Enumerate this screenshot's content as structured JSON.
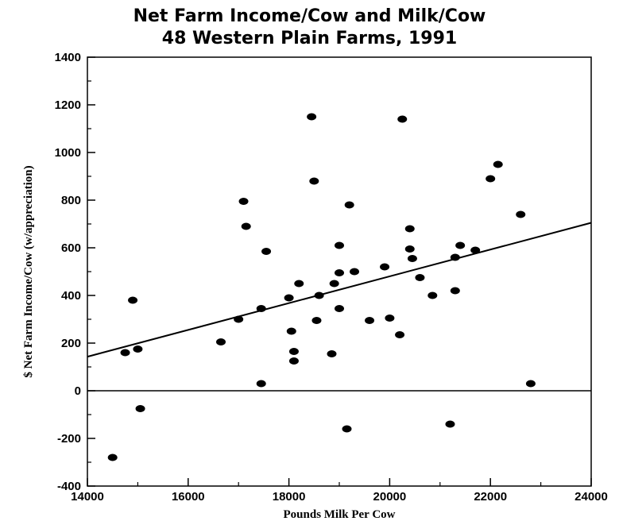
{
  "chart_data": {
    "type": "scatter",
    "title": "Net Farm Income/Cow and Milk/Cow",
    "subtitle": "48 Western Plain Farms, 1991",
    "xlabel": "Pounds Milk Per Cow",
    "ylabel": "$ Net Farm Income/Cow (w/appreciation)",
    "xlim": [
      14000,
      24000
    ],
    "ylim": [
      -400,
      1400
    ],
    "x_ticks": [
      14000,
      16000,
      18000,
      20000,
      22000,
      24000
    ],
    "y_ticks": [
      -400,
      -200,
      0,
      200,
      400,
      600,
      800,
      1000,
      1200,
      1400
    ],
    "x_tick_labels": [
      "14000",
      "16000",
      "18000",
      "20000",
      "22000",
      "24000"
    ],
    "y_tick_labels": [
      "-400",
      "-200",
      "0",
      "200",
      "400",
      "600",
      "800",
      "1000",
      "1200",
      "1400"
    ],
    "zero_line": true,
    "trend_line": [
      [
        14000,
        143
      ],
      [
        24000,
        705
      ]
    ],
    "points": [
      [
        14500,
        -280
      ],
      [
        14750,
        160
      ],
      [
        14900,
        380
      ],
      [
        15000,
        175
      ],
      [
        15050,
        -75
      ],
      [
        16650,
        205
      ],
      [
        17000,
        300
      ],
      [
        17100,
        795
      ],
      [
        17150,
        690
      ],
      [
        17450,
        30
      ],
      [
        17450,
        345
      ],
      [
        17550,
        585
      ],
      [
        18000,
        390
      ],
      [
        18050,
        250
      ],
      [
        18100,
        125
      ],
      [
        18100,
        165
      ],
      [
        18200,
        450
      ],
      [
        18450,
        1150
      ],
      [
        18500,
        880
      ],
      [
        18550,
        295
      ],
      [
        18600,
        400
      ],
      [
        18850,
        155
      ],
      [
        18900,
        450
      ],
      [
        19000,
        345
      ],
      [
        19000,
        495
      ],
      [
        19000,
        610
      ],
      [
        19150,
        -160
      ],
      [
        19200,
        780
      ],
      [
        19300,
        500
      ],
      [
        19600,
        295
      ],
      [
        19900,
        520
      ],
      [
        20000,
        305
      ],
      [
        20200,
        235
      ],
      [
        20250,
        1140
      ],
      [
        20400,
        595
      ],
      [
        20400,
        680
      ],
      [
        20450,
        555
      ],
      [
        20600,
        475
      ],
      [
        20850,
        400
      ],
      [
        21200,
        -140
      ],
      [
        21300,
        560
      ],
      [
        21300,
        420
      ],
      [
        21400,
        610
      ],
      [
        21700,
        590
      ],
      [
        22000,
        890
      ],
      [
        22150,
        950
      ],
      [
        22600,
        740
      ],
      [
        22800,
        30
      ]
    ]
  }
}
